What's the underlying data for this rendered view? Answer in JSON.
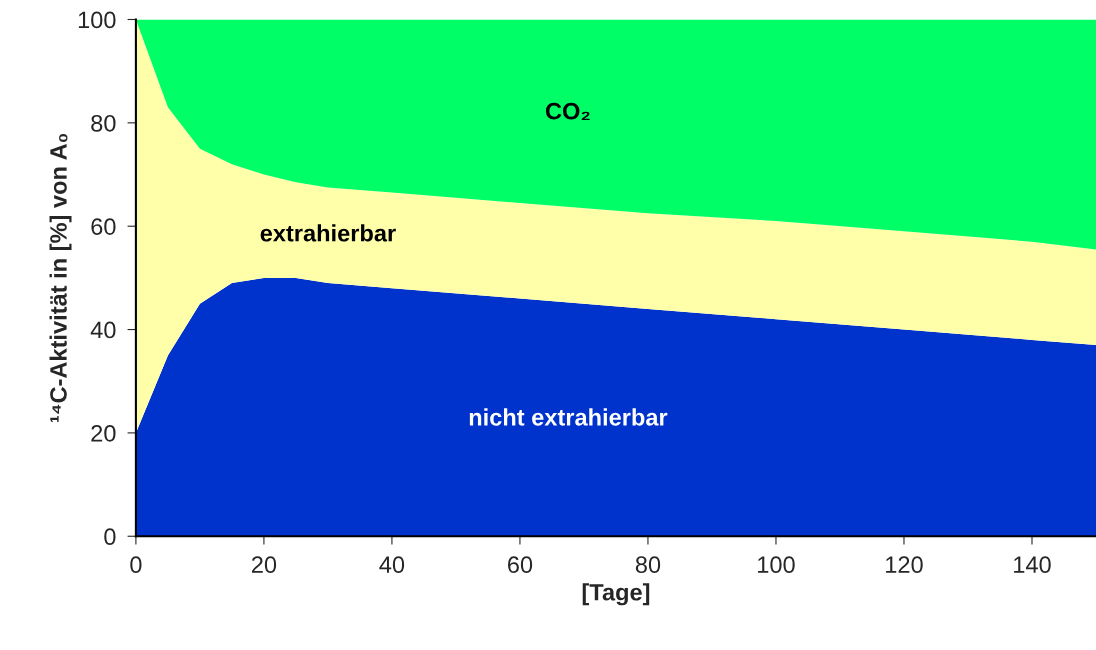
{
  "chart_data": {
    "type": "area",
    "stacked": true,
    "xlabel": "[Tage]",
    "ylabel": "¹⁴C-Aktivität in [%] von A₀",
    "x": [
      0,
      5,
      10,
      15,
      20,
      25,
      30,
      40,
      60,
      80,
      100,
      120,
      140,
      150
    ],
    "series": [
      {
        "name": "nicht extrahierbar",
        "color": "#0033cc",
        "values": [
          20,
          35,
          45,
          49,
          50,
          50,
          49,
          48,
          46,
          44,
          42,
          40,
          38,
          37
        ]
      },
      {
        "name": "extrahierbar",
        "color": "#ffffaa",
        "values": [
          80,
          48,
          30,
          23,
          20,
          18.5,
          18.5,
          18.5,
          18.5,
          18.5,
          19,
          19,
          19,
          18.5
        ]
      },
      {
        "name": "CO₂",
        "color": "#00ff66",
        "values": [
          0,
          17,
          25,
          28,
          30,
          31.5,
          32.5,
          33.5,
          35.5,
          37.5,
          39,
          41,
          43,
          44.5
        ]
      }
    ],
    "xlim": [
      0,
      150
    ],
    "xticks": [
      0,
      20,
      40,
      60,
      80,
      100,
      120,
      140
    ],
    "ylim": [
      0,
      100
    ],
    "yticks": [
      0,
      20,
      40,
      60,
      80,
      100
    ],
    "grid": false,
    "legend": false
  }
}
